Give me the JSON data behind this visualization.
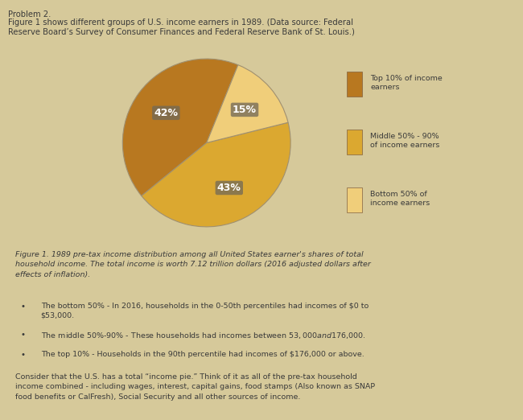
{
  "title_line1": "Problem 2.",
  "title_line2": "Figure 1 shows different groups of U.S. income earners in 1989. (Data source: Federal",
  "title_line3": "Reserve Board’s Survey of Consumer Finances and Federal Reserve Bank of St. Louis.)",
  "slices": [
    42,
    43,
    15
  ],
  "labels": [
    "42%",
    "43%",
    "15%"
  ],
  "legend_labels": [
    "Top 10% of income\nearners",
    "Middle 50% - 90%\nof income earners",
    "Bottom 50% of\nincome earners"
  ],
  "colors": [
    "#B87820",
    "#DBA830",
    "#F0CE7A"
  ],
  "startangle": 68,
  "figure_caption": "Figure 1. 1989 pre-tax income distribution among all United States earner's shares of total\nhousehold income. The total income is worth 7.12 trillion dollars (2016 adjusted dollars after\neffects of inflation).",
  "bullet1": "The bottom 50% - In 2016, households in the 0-50th percentiles had incomes of $0 to\n$53,000.",
  "bullet2": "The middle 50%-90% - These households had incomes between $53,000 and $176,000.",
  "bullet3": "The top 10% - Households in the 90th percentile had incomes of $176,000 or above.",
  "paragraph": "Consider that the U.S. has a total “income pie.” Think of it as all of the pre-tax household\nincome combined - including wages, interest, capital gains, food stamps (Also known as SNAP\nfood benefits or CalFresh), Social Security and all other sources of income.",
  "chart_bg_color": "#C4B07A",
  "page_bg": "#D6C99A",
  "text_color": "#3A3A3A",
  "label_box_color": "#706858",
  "legend_marker_colors": [
    "#B87820",
    "#DBA830",
    "#F0CE7A"
  ]
}
